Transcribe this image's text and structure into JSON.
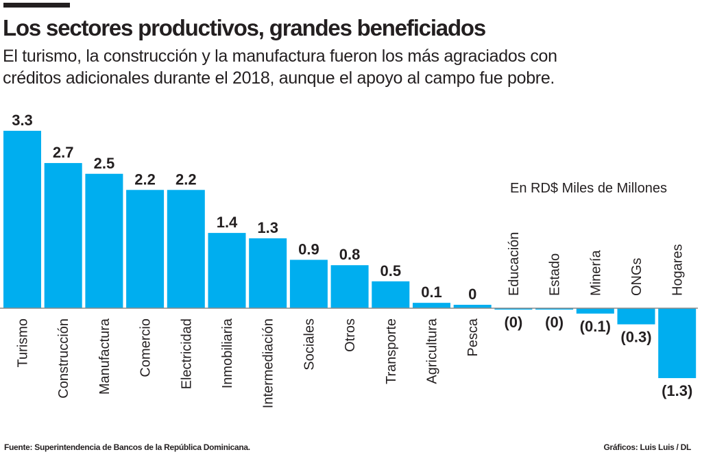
{
  "chart_data": {
    "type": "bar",
    "title": "Los sectores productivos, grandes beneficiados",
    "subtitle": "El turismo, la construcción y la manufactura fueron los más agraciados con créditos adicionales durante el 2018, aunque el apoyo al campo fue pobre.",
    "unit_label": "En RD$ Miles de Millones",
    "categories": [
      "Turismo",
      "Construcción",
      "Manufactura",
      "Comercio",
      "Electricidad",
      "Inmobiliaria",
      "Intermediación",
      "Sociales",
      "Otros",
      "Transporte",
      "Agricultura",
      "Pesca",
      "Educación",
      "Estado",
      "Minería",
      "ONGs",
      "Hogares"
    ],
    "values": [
      3.3,
      2.7,
      2.5,
      2.2,
      2.2,
      1.4,
      1.3,
      0.9,
      0.8,
      0.5,
      0.1,
      0,
      0,
      0,
      -0.1,
      -0.3,
      -1.3
    ],
    "value_labels": [
      "3.3",
      "2.7",
      "2.5",
      "2.2",
      "2.2",
      "1.4",
      "1.3",
      "0.9",
      "0.8",
      "0.5",
      "0.1",
      "0",
      "(0)",
      "(0)",
      "(0.1)",
      "(0.3)",
      "(1.3)"
    ],
    "bar_color": "#00AEEF",
    "ylim": [
      -1.3,
      3.3
    ],
    "grid": false,
    "legend": "none",
    "xlabel": "",
    "ylabel": ""
  },
  "footer": {
    "source": "Fuente: Superintendencia de Bancos de la República Dominicana.",
    "credit": "Gráficos: Luis Luis / DL"
  }
}
